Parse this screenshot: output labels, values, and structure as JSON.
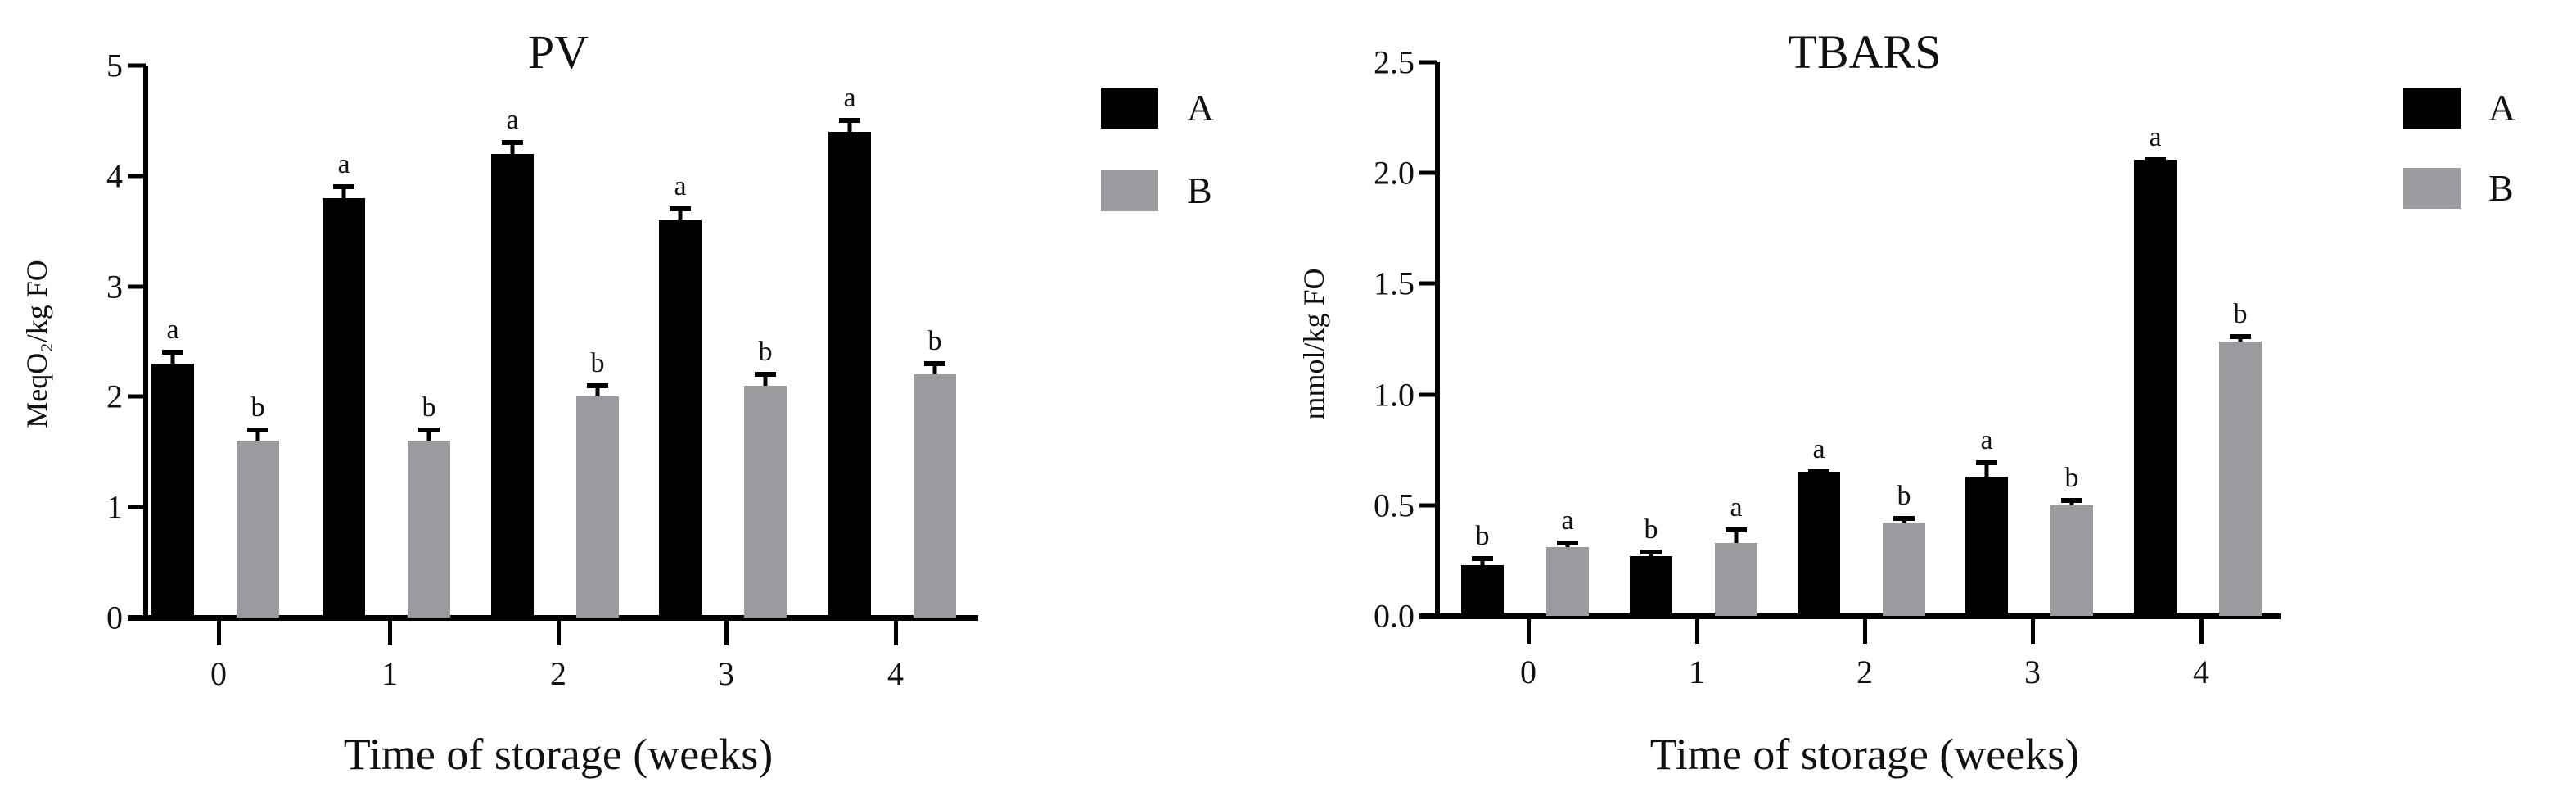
{
  "chart_data": [
    {
      "type": "bar",
      "title": "PV",
      "xlabel": "Time of storage (weeks)",
      "ylabel": "MeqO₂/kg FO",
      "ylim": [
        0,
        5
      ],
      "yticks": [
        "0",
        "1",
        "2",
        "3",
        "4",
        "5"
      ],
      "categories": [
        "0",
        "1",
        "2",
        "3",
        "4"
      ],
      "legend_position": "right",
      "grid": false,
      "series": [
        {
          "name": "A",
          "color": "#000000",
          "values": [
            2.3,
            3.8,
            4.2,
            3.6,
            4.4
          ],
          "errors": [
            0.1,
            0.1,
            0.1,
            0.1,
            0.1
          ],
          "significance": [
            "a",
            "a",
            "a",
            "a",
            "a"
          ]
        },
        {
          "name": "B",
          "color": "#9b9b9f",
          "values": [
            1.6,
            1.6,
            2.0,
            2.1,
            2.2
          ],
          "errors": [
            0.1,
            0.1,
            0.1,
            0.1,
            0.1
          ],
          "significance": [
            "b",
            "b",
            "b",
            "b",
            "b"
          ]
        }
      ]
    },
    {
      "type": "bar",
      "title": "TBARS",
      "xlabel": "Time of storage (weeks)",
      "ylabel": "mmol/kg FO",
      "ylim": [
        0,
        2.5
      ],
      "yticks": [
        "0.0",
        "0.5",
        "1.0",
        "1.5",
        "2.0",
        "2.5"
      ],
      "categories": [
        "0",
        "1",
        "2",
        "3",
        "4"
      ],
      "legend_position": "right",
      "grid": false,
      "series": [
        {
          "name": "A",
          "color": "#000000",
          "values": [
            0.23,
            0.27,
            0.65,
            0.63,
            2.06
          ],
          "errors": [
            0.03,
            0.02,
            0.0,
            0.06,
            0.0
          ],
          "significance": [
            "b",
            "b",
            "a",
            "a",
            "a"
          ]
        },
        {
          "name": "B",
          "color": "#9b9b9f",
          "values": [
            0.31,
            0.33,
            0.42,
            0.5,
            1.24
          ],
          "errors": [
            0.02,
            0.06,
            0.02,
            0.02,
            0.02
          ],
          "significance": [
            "a",
            "a",
            "b",
            "b",
            "b"
          ]
        }
      ]
    }
  ]
}
